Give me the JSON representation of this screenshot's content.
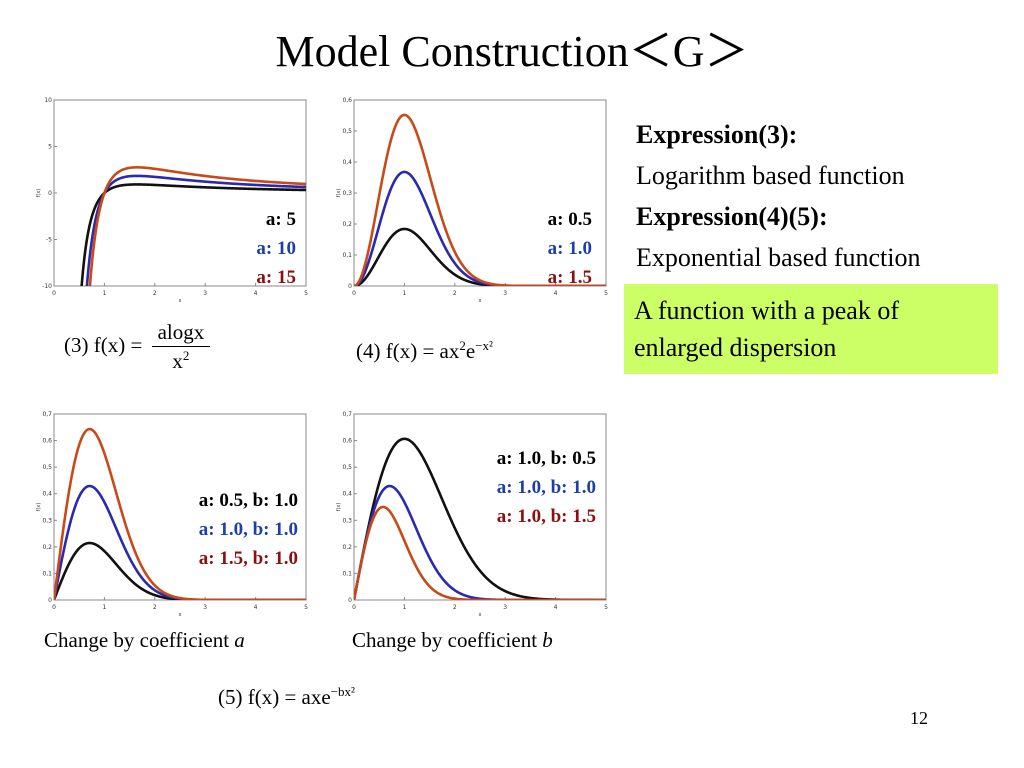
{
  "title": "Model Construction＜G＞",
  "colors": {
    "black": "#111111",
    "blue": "#2a2ab0",
    "orange": "#c84a18",
    "legend_blue": "#1f3fa8",
    "legend_red": "#8b1010",
    "callout_bg": "#ccff66"
  },
  "expressions": {
    "expr3_label": "Expression(3):",
    "expr3_desc": "Logarithm based function",
    "expr45_label": "Expression(4)(5):",
    "expr45_desc": "Exponential based function"
  },
  "callout": "A function with a peak of enlarged dispersion",
  "formulas": {
    "f3_prefix": "(3) f(x) =",
    "f3_num": "alogx",
    "f3_den": "x",
    "f3_den_exp": "2",
    "f4_prefix": "(4) f(x) = ax",
    "f4_exp1": "2",
    "f4_mid": "e",
    "f4_exp2": "−x²",
    "f5_prefix": "(5) f(x) = axe",
    "f5_exp": "−bx²"
  },
  "captions": {
    "a_text": "Change by coefficient ",
    "a_var": "a",
    "b_text": "Change by coefficient ",
    "b_var": "b"
  },
  "page_number": "12",
  "legends": {
    "c1": [
      "a: 5",
      "a: 10",
      "a: 15"
    ],
    "c2": [
      "a: 0.5",
      "a: 1.0",
      "a: 1.5"
    ],
    "c3": [
      "a: 0.5, b: 1.0",
      "a: 1.0, b: 1.0",
      "a: 1.5, b: 1.0"
    ],
    "c4": [
      "a: 1.0, b: 0.5",
      "a: 1.0, b: 1.0",
      "a: 1.0, b: 1.5"
    ]
  },
  "chart_data": [
    {
      "type": "line",
      "function": "a*log(x)/x^2",
      "xlabel": "x",
      "ylabel": "f(x)",
      "xlim": [
        0,
        5
      ],
      "ylim": [
        -10,
        10
      ],
      "xticks": [
        "0",
        "1",
        "2",
        "3",
        "4",
        "5"
      ],
      "yticks": [
        "-10",
        "-5",
        "0",
        "5",
        "10"
      ],
      "series": [
        {
          "name": "a: 5",
          "a": 5,
          "color": "black"
        },
        {
          "name": "a: 10",
          "a": 10,
          "color": "blue"
        },
        {
          "name": "a: 15",
          "a": 15,
          "color": "orange"
        }
      ]
    },
    {
      "type": "line",
      "function": "a*x^2*exp(-x^2)",
      "xlabel": "x",
      "ylabel": "f(x)",
      "xlim": [
        0,
        5
      ],
      "ylim": [
        0,
        0.6
      ],
      "xticks": [
        "0",
        "1",
        "2",
        "3",
        "4",
        "5"
      ],
      "yticks": [
        "0",
        "0,1",
        "0,2",
        "0,3",
        "0,4",
        "0,5",
        "0,6"
      ],
      "series": [
        {
          "name": "a: 0.5",
          "a": 0.5,
          "color": "black"
        },
        {
          "name": "a: 1.0",
          "a": 1.0,
          "color": "blue"
        },
        {
          "name": "a: 1.5",
          "a": 1.5,
          "color": "orange"
        }
      ]
    },
    {
      "type": "line",
      "function": "a*x*exp(-b*x^2)",
      "xlabel": "x",
      "ylabel": "f(x)",
      "xlim": [
        0,
        5
      ],
      "ylim": [
        0,
        0.7
      ],
      "xticks": [
        "0",
        "1",
        "2",
        "3",
        "4",
        "5"
      ],
      "yticks": [
        "0",
        "0,1",
        "0,2",
        "0,3",
        "0,4",
        "0,5",
        "0,6",
        "0,7"
      ],
      "series": [
        {
          "name": "a: 0.5, b: 1.0",
          "a": 0.5,
          "b": 1.0,
          "color": "black"
        },
        {
          "name": "a: 1.0, b: 1.0",
          "a": 1.0,
          "b": 1.0,
          "color": "blue"
        },
        {
          "name": "a: 1.5, b: 1.0",
          "a": 1.5,
          "b": 1.0,
          "color": "orange"
        }
      ]
    },
    {
      "type": "line",
      "function": "a*x*exp(-b*x^2)",
      "xlabel": "x",
      "ylabel": "f(x)",
      "xlim": [
        0,
        5
      ],
      "ylim": [
        0,
        0.7
      ],
      "xticks": [
        "0",
        "1",
        "2",
        "3",
        "4",
        "5"
      ],
      "yticks": [
        "0",
        "0,1",
        "0,2",
        "0,3",
        "0,4",
        "0,5",
        "0,6",
        "0,7"
      ],
      "series": [
        {
          "name": "a: 1.0, b: 0.5",
          "a": 1.0,
          "b": 0.5,
          "color": "black"
        },
        {
          "name": "a: 1.0, b: 1.0",
          "a": 1.0,
          "b": 1.0,
          "color": "blue"
        },
        {
          "name": "a: 1.0, b: 1.5",
          "a": 1.0,
          "b": 1.5,
          "color": "orange"
        }
      ]
    }
  ]
}
